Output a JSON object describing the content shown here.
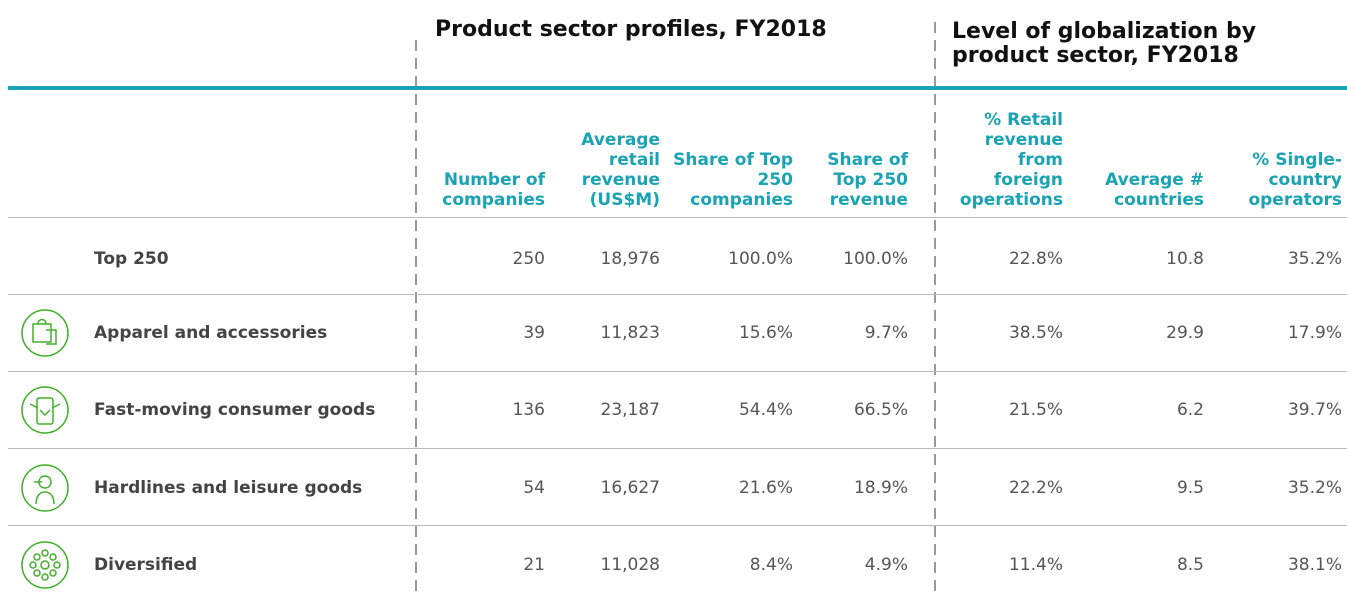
{
  "header": {
    "group1": "Product sector profiles, FY2018",
    "group2": "Level of globalization by product sector, FY2018"
  },
  "table": {
    "columns": [
      "Number of companies",
      "Average retail revenue (US$M)",
      "Share of Top 250 companies",
      "Share of Top 250 revenue",
      "% Retail revenue from foreign operations",
      "Average # countries",
      "% Single-country operators"
    ],
    "rows": [
      [
        "Top 250",
        "250",
        "18,976",
        "100.0%",
        "100.0%",
        "22.8%",
        "10.8",
        "35.2%"
      ],
      [
        "Apparel and accessories",
        "39",
        "11,823",
        "15.6%",
        "9.7%",
        "38.5%",
        "29.9",
        "17.9%"
      ],
      [
        "Fast-moving consumer goods",
        "136",
        "23,187",
        "54.4%",
        "66.5%",
        "21.5%",
        "6.2",
        "39.7%"
      ],
      [
        "Hardlines and leisure goods",
        "54",
        "16,627",
        "21.6%",
        "18.9%",
        "22.2%",
        "9.5",
        "35.2%"
      ],
      [
        "Diversified",
        "21",
        "11,028",
        "8.4%",
        "4.9%",
        "11.4%",
        "8.5",
        "38.1%"
      ]
    ]
  }
}
